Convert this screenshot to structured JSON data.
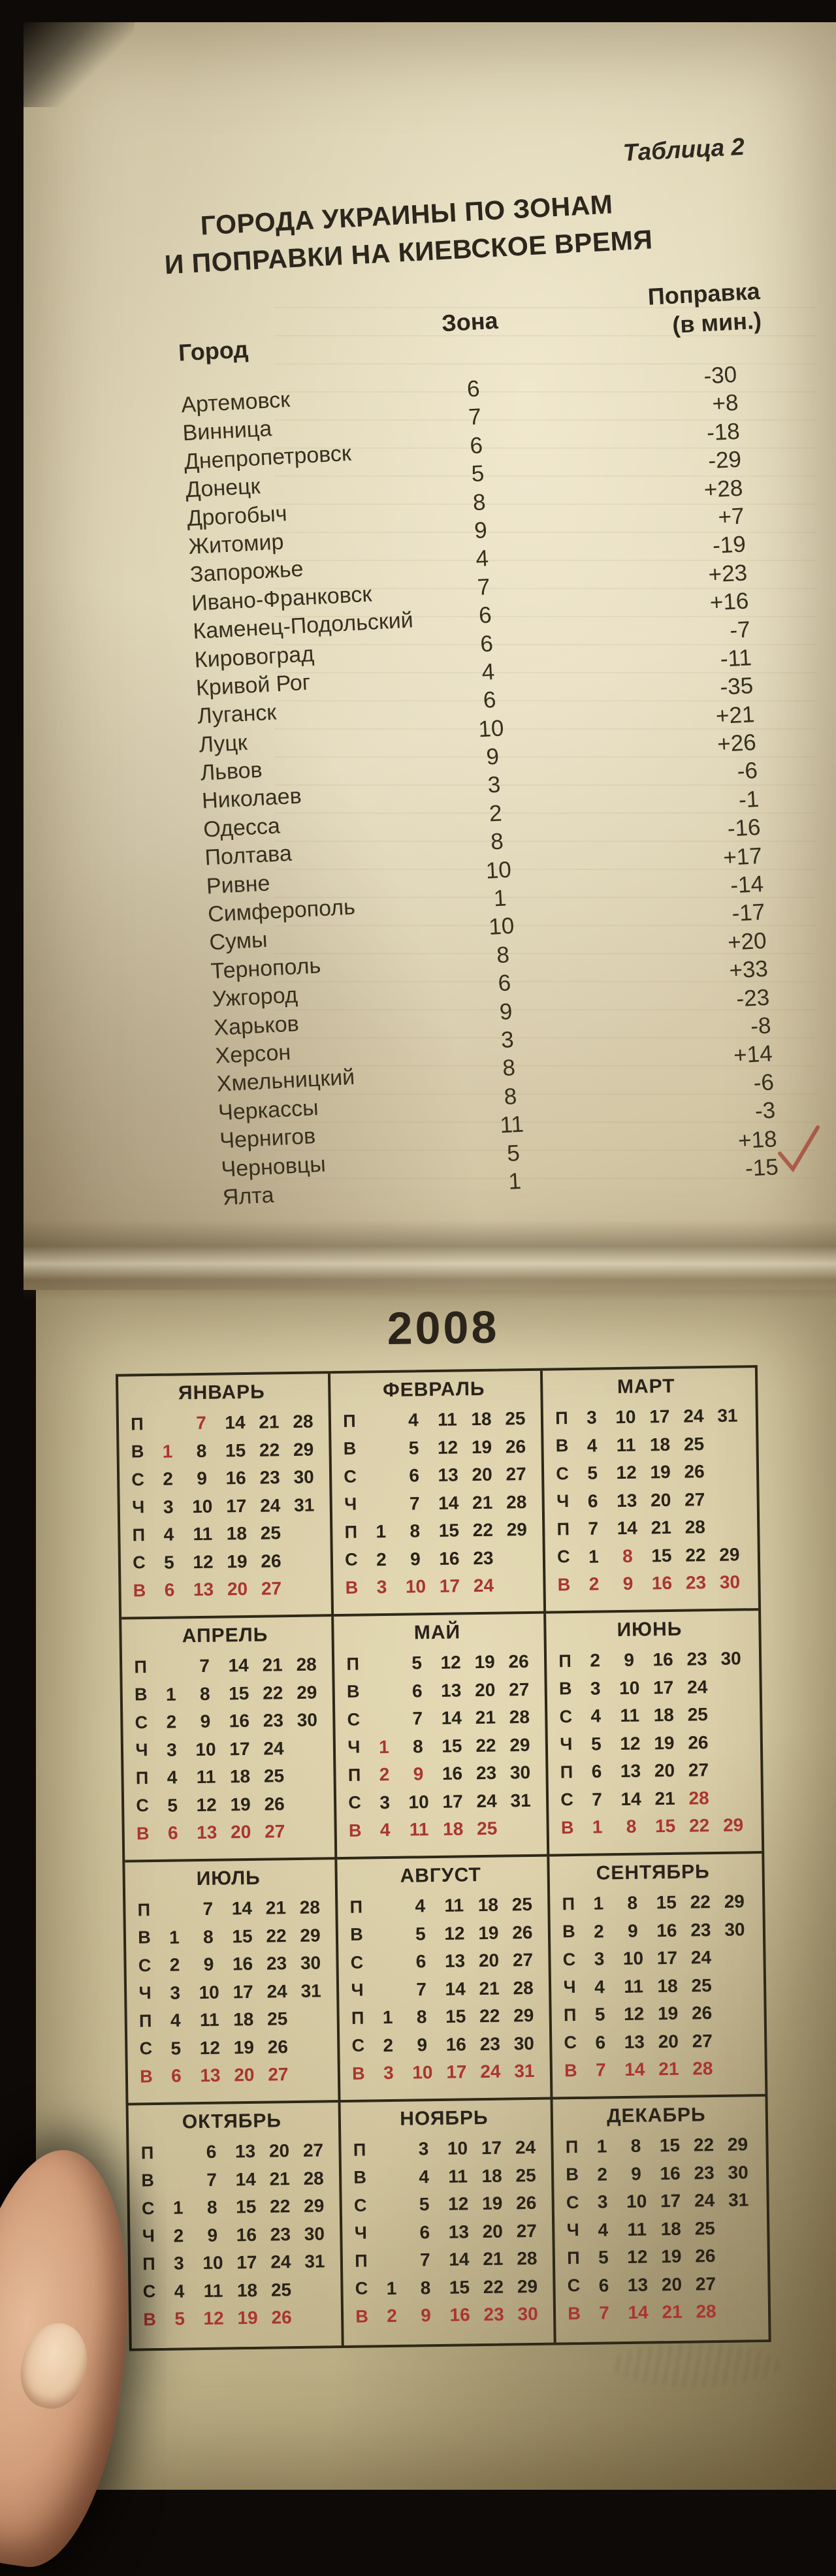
{
  "table2": {
    "tag": "Таблица 2",
    "title1": "ГОРОДА УКРАИНЫ ПО ЗОНАМ",
    "title2": "И ПОПРАВКИ НА КИЕВСКОЕ ВРЕМЯ",
    "headers": {
      "city": "Город",
      "zone": "Зона",
      "corr1": "Поправка",
      "corr2": "(в мин.)"
    },
    "rows": [
      [
        "Артемовск",
        "6",
        "-30"
      ],
      [
        "Винница",
        "7",
        "+8"
      ],
      [
        "Днепропетровск",
        "6",
        "-18"
      ],
      [
        "Донецк",
        "5",
        "-29"
      ],
      [
        "Дрогобыч",
        "8",
        "+28"
      ],
      [
        "Житомир",
        "9",
        "+7"
      ],
      [
        "Запорожье",
        "4",
        "-19"
      ],
      [
        "Ивано-Франковск",
        "7",
        "+23"
      ],
      [
        "Каменец-Подольский",
        "6",
        "+16"
      ],
      [
        "Кировоград",
        "6",
        "-7"
      ],
      [
        "Кривой Рог",
        "4",
        "-11"
      ],
      [
        "Луганск",
        "6",
        "-35"
      ],
      [
        "Луцк",
        "10",
        "+21"
      ],
      [
        "Львов",
        "9",
        "+26"
      ],
      [
        "Николаев",
        "3",
        "-6"
      ],
      [
        "Одесса",
        "2",
        "-1"
      ],
      [
        "Полтава",
        "8",
        "-16"
      ],
      [
        "Ривне",
        "10",
        "+17"
      ],
      [
        "Симферополь",
        "1",
        "-14"
      ],
      [
        "Сумы",
        "10",
        "-17"
      ],
      [
        "Тернополь",
        "8",
        "+20"
      ],
      [
        "Ужгород",
        "6",
        "+33"
      ],
      [
        "Харьков",
        "9",
        "-23"
      ],
      [
        "Херсон",
        "3",
        "-8"
      ],
      [
        "Хмельницкий",
        "8",
        "+14"
      ],
      [
        "Черкассы",
        "8",
        "-6"
      ],
      [
        "Чернигов",
        "11",
        "-3"
      ],
      [
        "Черновцы",
        "5",
        "+18"
      ],
      [
        "Ялта",
        "1",
        "-15"
      ]
    ]
  },
  "calendar": {
    "year": "2008",
    "day_labels": [
      "П",
      "В",
      "С",
      "Ч",
      "П",
      "С",
      "В"
    ],
    "months": [
      {
        "name": "ЯНВАРЬ",
        "rows": [
          [
            "",
            "7*",
            "14",
            "21",
            "28"
          ],
          [
            "1*",
            "8",
            "15",
            "22",
            "29"
          ],
          [
            "2",
            "9",
            "16",
            "23",
            "30"
          ],
          [
            "3",
            "10",
            "17",
            "24",
            "31"
          ],
          [
            "4",
            "11",
            "18",
            "25",
            ""
          ],
          [
            "5",
            "12",
            "19",
            "26",
            ""
          ],
          [
            "6",
            "13",
            "20",
            "27",
            ""
          ]
        ]
      },
      {
        "name": "ФЕВРАЛЬ",
        "rows": [
          [
            "",
            "4",
            "11",
            "18",
            "25"
          ],
          [
            "",
            "5",
            "12",
            "19",
            "26"
          ],
          [
            "",
            "6",
            "13",
            "20",
            "27"
          ],
          [
            "",
            "7",
            "14",
            "21",
            "28"
          ],
          [
            "1",
            "8",
            "15",
            "22",
            "29"
          ],
          [
            "2",
            "9",
            "16",
            "23",
            ""
          ],
          [
            "3",
            "10",
            "17",
            "24",
            ""
          ]
        ]
      },
      {
        "name": "МАРТ",
        "rows": [
          [
            "3",
            "10",
            "17",
            "24",
            "31"
          ],
          [
            "4",
            "11",
            "18",
            "25",
            ""
          ],
          [
            "5",
            "12",
            "19",
            "26",
            ""
          ],
          [
            "6",
            "13",
            "20",
            "27",
            ""
          ],
          [
            "7",
            "14",
            "21",
            "28",
            ""
          ],
          [
            "1",
            "8*",
            "15",
            "22",
            "29"
          ],
          [
            "2",
            "9",
            "16",
            "23",
            "30"
          ]
        ]
      },
      {
        "name": "АПРЕЛЬ",
        "rows": [
          [
            "",
            "7",
            "14",
            "21",
            "28"
          ],
          [
            "1",
            "8",
            "15",
            "22",
            "29"
          ],
          [
            "2",
            "9",
            "16",
            "23",
            "30"
          ],
          [
            "3",
            "10",
            "17",
            "24",
            ""
          ],
          [
            "4",
            "11",
            "18",
            "25",
            ""
          ],
          [
            "5",
            "12",
            "19",
            "26",
            ""
          ],
          [
            "6",
            "13",
            "20",
            "27",
            ""
          ]
        ]
      },
      {
        "name": "МАЙ",
        "rows": [
          [
            "",
            "5",
            "12",
            "19",
            "26"
          ],
          [
            "",
            "6",
            "13",
            "20",
            "27"
          ],
          [
            "",
            "7",
            "14",
            "21",
            "28"
          ],
          [
            "1*",
            "8",
            "15",
            "22",
            "29"
          ],
          [
            "2*",
            "9*",
            "16",
            "23",
            "30"
          ],
          [
            "3",
            "10",
            "17",
            "24",
            "31"
          ],
          [
            "4",
            "11",
            "18",
            "25",
            ""
          ]
        ]
      },
      {
        "name": "ИЮНЬ",
        "rows": [
          [
            "2",
            "9",
            "16",
            "23",
            "30"
          ],
          [
            "3",
            "10",
            "17",
            "24",
            ""
          ],
          [
            "4",
            "11",
            "18",
            "25",
            ""
          ],
          [
            "5",
            "12",
            "19",
            "26",
            ""
          ],
          [
            "6",
            "13",
            "20",
            "27",
            ""
          ],
          [
            "7",
            "14",
            "21",
            "28*",
            ""
          ],
          [
            "1",
            "8",
            "15",
            "22",
            "29"
          ]
        ]
      },
      {
        "name": "ИЮЛЬ",
        "rows": [
          [
            "",
            "7",
            "14",
            "21",
            "28"
          ],
          [
            "1",
            "8",
            "15",
            "22",
            "29"
          ],
          [
            "2",
            "9",
            "16",
            "23",
            "30"
          ],
          [
            "3",
            "10",
            "17",
            "24",
            "31"
          ],
          [
            "4",
            "11",
            "18",
            "25",
            ""
          ],
          [
            "5",
            "12",
            "19",
            "26",
            ""
          ],
          [
            "6",
            "13",
            "20",
            "27",
            ""
          ]
        ]
      },
      {
        "name": "АВГУСТ",
        "rows": [
          [
            "",
            "4",
            "11",
            "18",
            "25"
          ],
          [
            "",
            "5",
            "12",
            "19",
            "26"
          ],
          [
            "",
            "6",
            "13",
            "20",
            "27"
          ],
          [
            "",
            "7",
            "14",
            "21",
            "28"
          ],
          [
            "1",
            "8",
            "15",
            "22",
            "29"
          ],
          [
            "2",
            "9",
            "16",
            "23",
            "30"
          ],
          [
            "3",
            "10",
            "17",
            "24",
            "31"
          ]
        ]
      },
      {
        "name": "СЕНТЯБРЬ",
        "rows": [
          [
            "1",
            "8",
            "15",
            "22",
            "29"
          ],
          [
            "2",
            "9",
            "16",
            "23",
            "30"
          ],
          [
            "3",
            "10",
            "17",
            "24",
            ""
          ],
          [
            "4",
            "11",
            "18",
            "25",
            ""
          ],
          [
            "5",
            "12",
            "19",
            "26",
            ""
          ],
          [
            "6",
            "13",
            "20",
            "27",
            ""
          ],
          [
            "7",
            "14",
            "21",
            "28",
            ""
          ]
        ]
      },
      {
        "name": "ОКТЯБРЬ",
        "rows": [
          [
            "",
            "6",
            "13",
            "20",
            "27"
          ],
          [
            "",
            "7",
            "14",
            "21",
            "28"
          ],
          [
            "1",
            "8",
            "15",
            "22",
            "29"
          ],
          [
            "2",
            "9",
            "16",
            "23",
            "30"
          ],
          [
            "3",
            "10",
            "17",
            "24",
            "31"
          ],
          [
            "4",
            "11",
            "18",
            "25",
            ""
          ],
          [
            "5",
            "12",
            "19",
            "26",
            ""
          ]
        ]
      },
      {
        "name": "НОЯБРЬ",
        "rows": [
          [
            "",
            "3",
            "10",
            "17",
            "24"
          ],
          [
            "",
            "4",
            "11",
            "18",
            "25"
          ],
          [
            "",
            "5",
            "12",
            "19",
            "26"
          ],
          [
            "",
            "6",
            "13",
            "20",
            "27"
          ],
          [
            "",
            "7",
            "14",
            "21",
            "28"
          ],
          [
            "1",
            "8",
            "15",
            "22",
            "29"
          ],
          [
            "2",
            "9",
            "16",
            "23",
            "30"
          ]
        ]
      },
      {
        "name": "ДЕКАБРЬ",
        "rows": [
          [
            "1",
            "8",
            "15",
            "22",
            "29"
          ],
          [
            "2",
            "9",
            "16",
            "23",
            "30"
          ],
          [
            "3",
            "10",
            "17",
            "24",
            "31"
          ],
          [
            "4",
            "11",
            "18",
            "25",
            ""
          ],
          [
            "5",
            "12",
            "19",
            "26",
            ""
          ],
          [
            "6",
            "13",
            "20",
            "27",
            ""
          ],
          [
            "7",
            "14",
            "21",
            "28",
            ""
          ]
        ]
      }
    ]
  },
  "colors": {
    "holiday_red": "#a93530",
    "ink": "#2c261d",
    "paper_top": "#ddd3b4",
    "paper_bottom": "#cdc29c",
    "background": "#0e0a07"
  }
}
